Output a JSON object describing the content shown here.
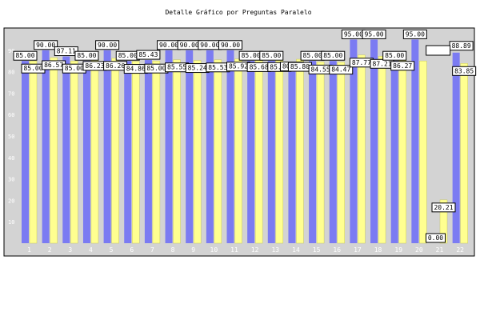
{
  "title": "Detalle Gráfico por Preguntas Paralelo",
  "chart_data": {
    "type": "bar",
    "title": "Detalle Gráfico por Preguntas Paralelo",
    "xlabel": "",
    "ylabel": "",
    "ylim": [
      0,
      100
    ],
    "yticks": [
      10,
      20,
      30,
      40,
      50,
      60,
      70,
      80,
      90
    ],
    "grid": false,
    "categories": [
      "1",
      "2",
      "3",
      "4",
      "5",
      "6",
      "7",
      "8",
      "9",
      "10",
      "11",
      "12",
      "13",
      "14",
      "15",
      "16",
      "17",
      "18",
      "19",
      "20",
      "21",
      "22"
    ],
    "series": [
      {
        "color": "#7b7bf2",
        "values": [
          85.0,
          90.0,
          87.11,
          85.0,
          90.0,
          85.0,
          85.43,
          90.0,
          90.0,
          90.0,
          90.0,
          85.0,
          85.0,
          80.0,
          85.0,
          85.0,
          95.0,
          95.0,
          85.0,
          95.0,
          0.0,
          88.89
        ]
      },
      {
        "color": "#ffff90",
        "values": [
          85.0,
          86.57,
          85.0,
          86.23,
          86.26,
          84.86,
          85.0,
          85.55,
          85.24,
          85.53,
          85.92,
          85.68,
          85.72,
          85.8,
          84.55,
          84.47,
          87.77,
          87.21,
          86.27,
          85.0,
          20.21,
          83.85
        ]
      }
    ],
    "labels": {
      "series1": [
        "85.00",
        "90.00",
        "87.11",
        "85.00",
        "90.00",
        "85.00",
        "85.43",
        "90.00",
        "90.00",
        "90.00",
        "90.00",
        "85.00",
        "85.00",
        "80.00",
        "85.00",
        "85.00",
        "95.00",
        "95.00",
        "85.00",
        "95.00",
        "0.00",
        ""
      ],
      "series2": [
        "85.00",
        "86.57",
        "85.00",
        "86.23",
        "86.26",
        "84.86",
        "85.00",
        "85.55",
        "85.24",
        "85.53",
        "85.92",
        "85.68",
        "85.72",
        "85.80",
        "84.55",
        "84.47",
        "87.77",
        "87.21",
        "86.27",
        "",
        "20.21",
        "83.85"
      ],
      "extra": "88.89"
    },
    "colors": {
      "plot_background": "#d3d3d3",
      "series1": "#7b7bf2",
      "series2": "#ffff90"
    }
  }
}
